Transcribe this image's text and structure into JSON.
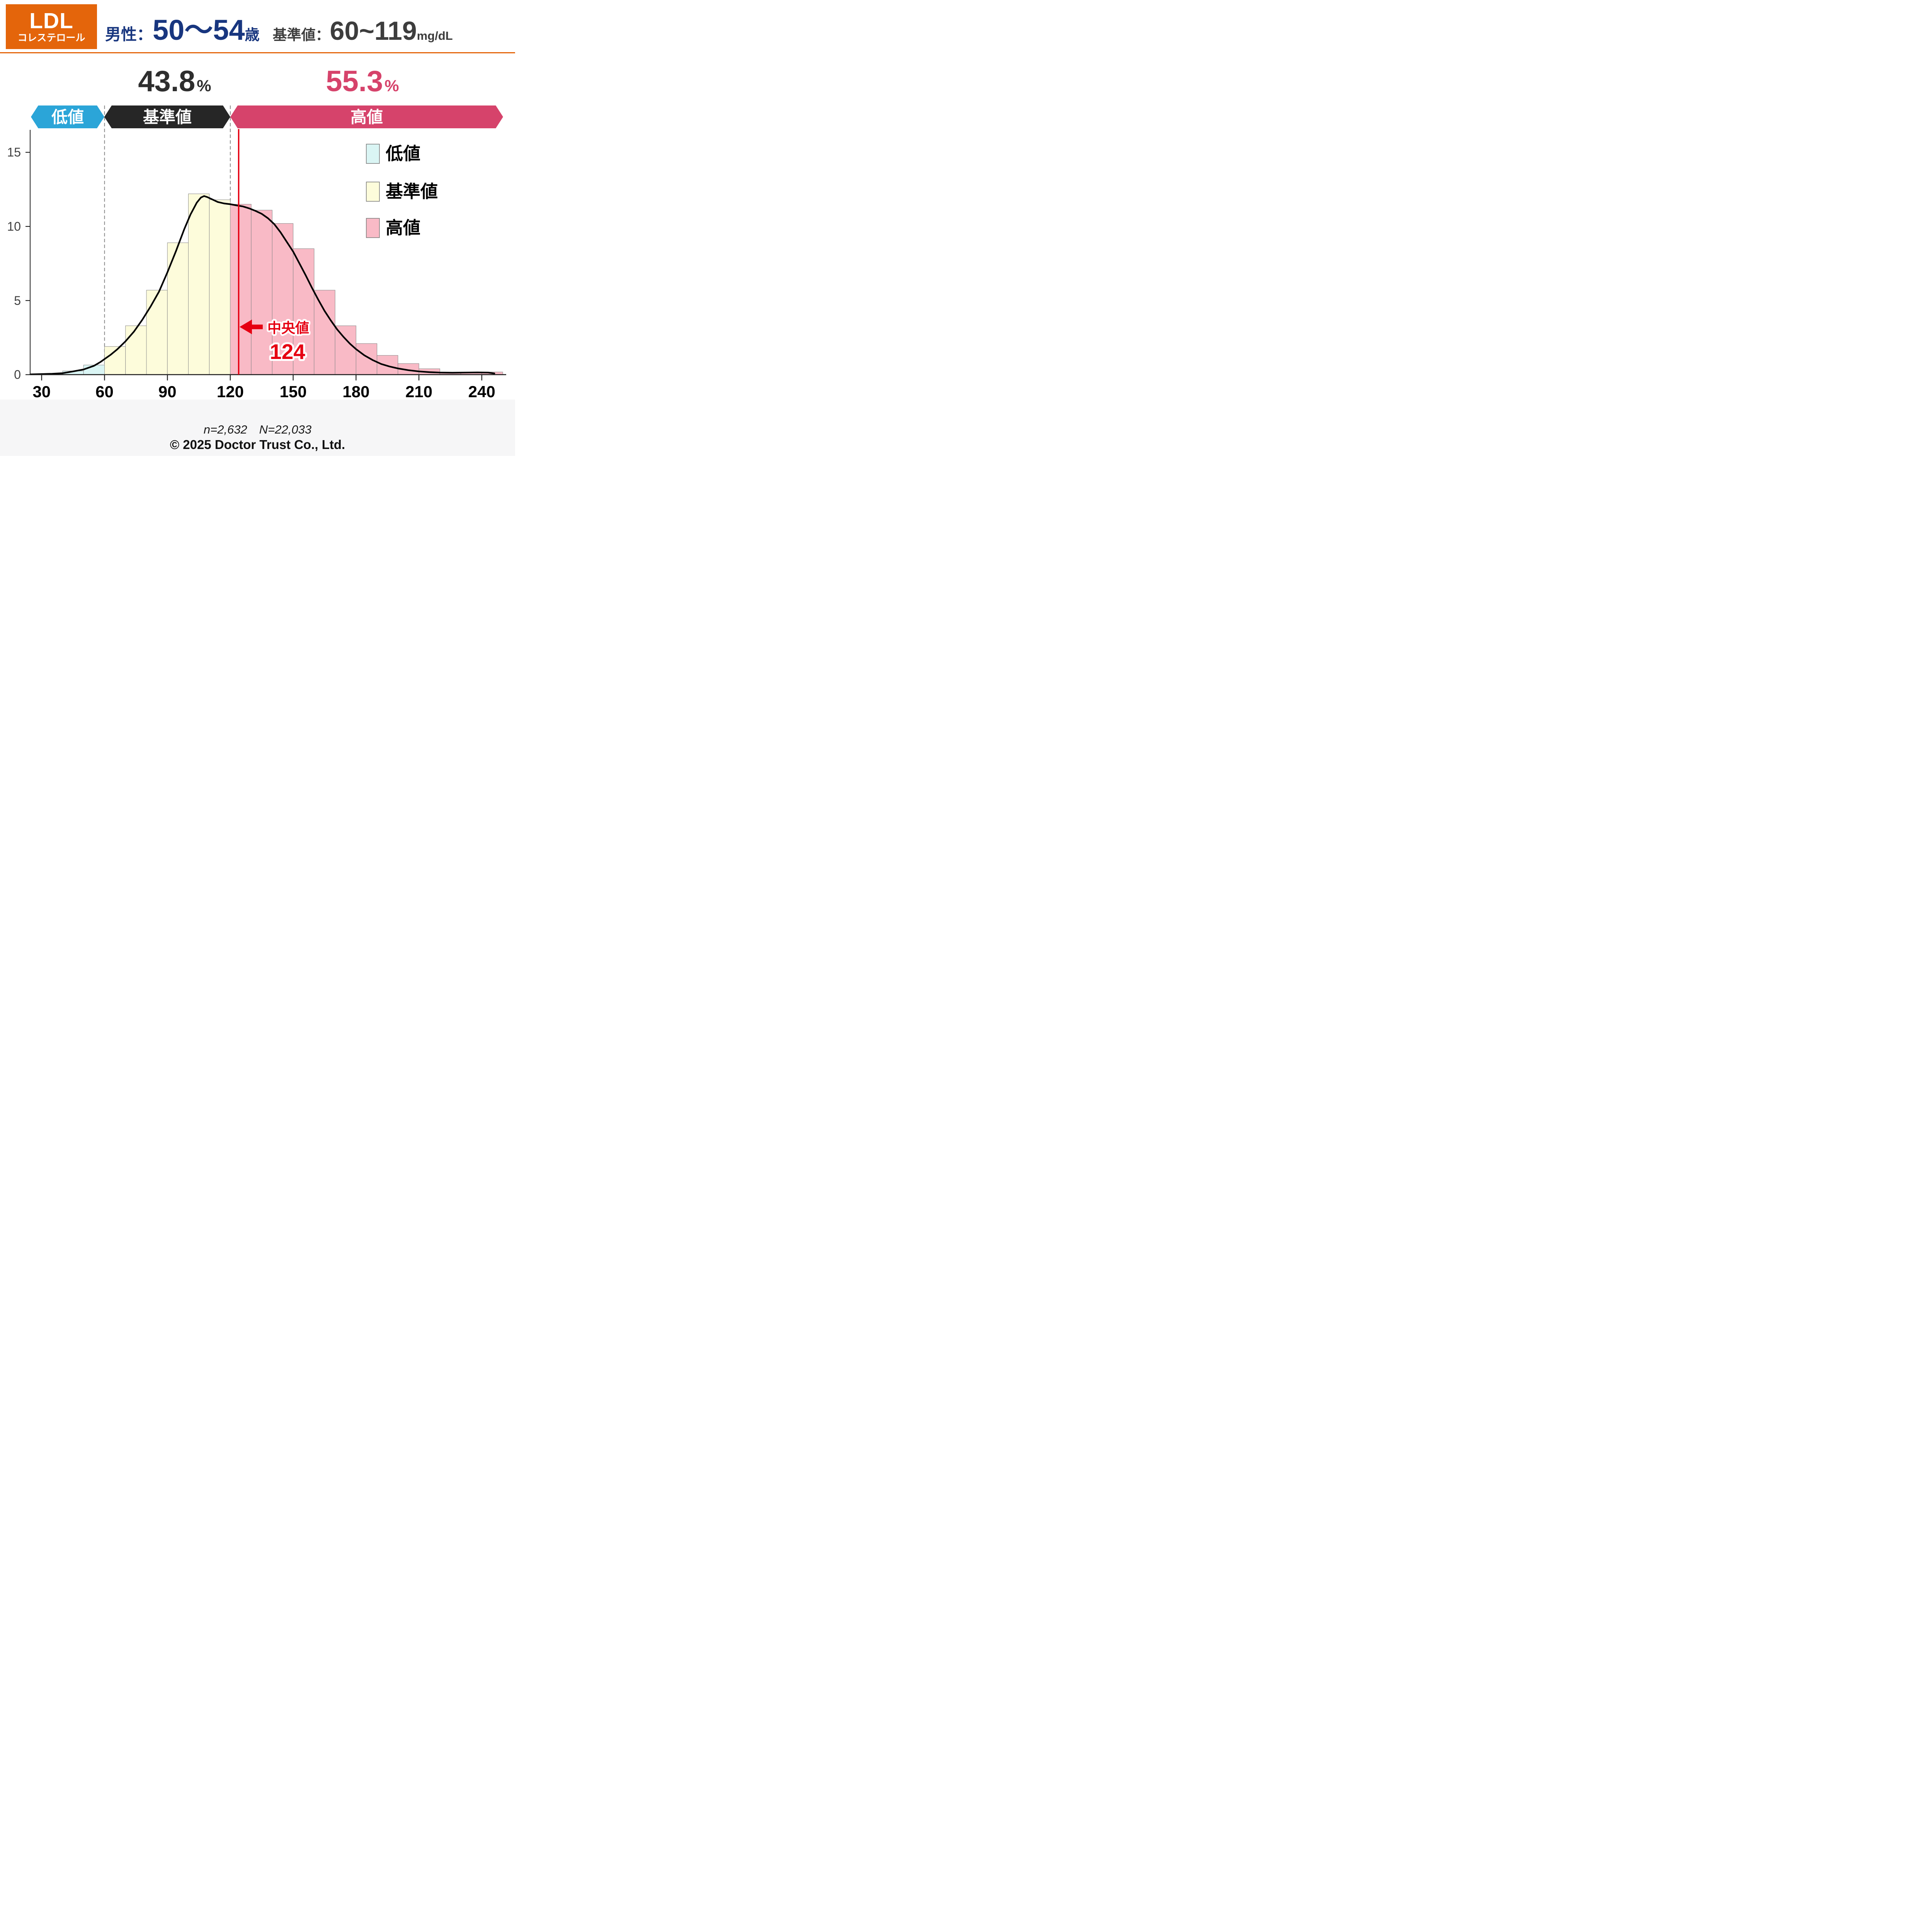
{
  "header": {
    "panel": {
      "line1": "LDL",
      "line2": "コレステロール"
    },
    "title": {
      "gender_label": "男性：",
      "age_range": "50～54",
      "age_suffix": "歳"
    },
    "reference": {
      "label": "基準値：",
      "range": "60~119",
      "unit": "mg/dL"
    }
  },
  "percents": {
    "reference": {
      "value": "43.8",
      "unit": "%"
    },
    "high": {
      "value": "55.3",
      "unit": "%"
    }
  },
  "banner": {
    "low": {
      "label": "低値",
      "color": "#2ba5d8"
    },
    "reference": {
      "label": "基準値",
      "color": "#262626"
    },
    "high": {
      "label": "高値",
      "color": "#d6436b"
    }
  },
  "legend": {
    "items": [
      {
        "label": "低値",
        "color": "#daf5f4"
      },
      {
        "label": "基準値",
        "color": "#fdfcdb"
      },
      {
        "label": "高値",
        "color": "#f9bac6"
      }
    ]
  },
  "median": {
    "label": "中央値",
    "value": "124",
    "x": 124
  },
  "footer": {
    "sample": "n=2,632　N=22,033",
    "copyright": "© 2025 Doctor Trust Co., Ltd."
  },
  "colors": {
    "accent_orange": "#e4650b",
    "navy": "#18367f",
    "red": "#e60012",
    "bar_stroke": "#888888",
    "axis": "#222222",
    "ytick_label": "#3f3f3f",
    "threshold_dash": "#7b7b7b",
    "percent_reference": "#2e2e2e",
    "percent_high": "#d6436b"
  },
  "chart_data": {
    "type": "bar",
    "subtype": "histogram_with_kde",
    "bin_start": 30,
    "bin_width": 10,
    "bin_edges": [
      30,
      40,
      50,
      60,
      70,
      80,
      90,
      100,
      110,
      120,
      130,
      140,
      150,
      160,
      170,
      180,
      190,
      200,
      210,
      220,
      230,
      240,
      250
    ],
    "values": [
      0.05,
      0.25,
      0.65,
      1.9,
      3.3,
      5.7,
      8.9,
      12.2,
      11.8,
      11.5,
      11.1,
      10.2,
      8.5,
      5.7,
      3.3,
      2.1,
      1.3,
      0.75,
      0.4,
      0.12,
      0.15,
      0.18
    ],
    "zone_thresholds": [
      60,
      120
    ],
    "zone_colors": {
      "low": "#daf5f4",
      "reference": "#fdfcdb",
      "high": "#f9bac6"
    },
    "zone_percentages": {
      "low": null,
      "reference": 43.8,
      "high": 55.3
    },
    "median": 124,
    "kde": [
      [
        24.6,
        0.02
      ],
      [
        30,
        0.04
      ],
      [
        35,
        0.06
      ],
      [
        40,
        0.1
      ],
      [
        45,
        0.22
      ],
      [
        50,
        0.35
      ],
      [
        55,
        0.6
      ],
      [
        58,
        0.85
      ],
      [
        60,
        1.05
      ],
      [
        63,
        1.35
      ],
      [
        66,
        1.7
      ],
      [
        70,
        2.25
      ],
      [
        74,
        2.9
      ],
      [
        78,
        3.7
      ],
      [
        82,
        4.6
      ],
      [
        86,
        5.6
      ],
      [
        90,
        6.9
      ],
      [
        94,
        8.3
      ],
      [
        98,
        9.8
      ],
      [
        101,
        10.8
      ],
      [
        104,
        11.6
      ],
      [
        106,
        11.95
      ],
      [
        107.5,
        12.05
      ],
      [
        109,
        11.98
      ],
      [
        111,
        11.85
      ],
      [
        114,
        11.65
      ],
      [
        117,
        11.55
      ],
      [
        120,
        11.5
      ],
      [
        123,
        11.42
      ],
      [
        126,
        11.35
      ],
      [
        129,
        11.22
      ],
      [
        132,
        11.05
      ],
      [
        135,
        10.85
      ],
      [
        138,
        10.55
      ],
      [
        141,
        10.15
      ],
      [
        144,
        9.6
      ],
      [
        147,
        8.95
      ],
      [
        150,
        8.3
      ],
      [
        153,
        7.5
      ],
      [
        156,
        6.7
      ],
      [
        159,
        5.85
      ],
      [
        162,
        5.05
      ],
      [
        165,
        4.3
      ],
      [
        168,
        3.65
      ],
      [
        171,
        3.05
      ],
      [
        174,
        2.55
      ],
      [
        177,
        2.1
      ],
      [
        180,
        1.72
      ],
      [
        184,
        1.3
      ],
      [
        188,
        0.98
      ],
      [
        192,
        0.72
      ],
      [
        196,
        0.55
      ],
      [
        200,
        0.42
      ],
      [
        205,
        0.3
      ],
      [
        210,
        0.22
      ],
      [
        215,
        0.17
      ],
      [
        220,
        0.14
      ],
      [
        226,
        0.13
      ],
      [
        232,
        0.14
      ],
      [
        238,
        0.15
      ],
      [
        243,
        0.14
      ],
      [
        246,
        0.08
      ]
    ],
    "xticks": [
      30,
      60,
      90,
      120,
      150,
      180,
      210,
      240
    ],
    "yticks": [
      0,
      5,
      10,
      15
    ],
    "xlim": [
      24.6,
      251.5
    ],
    "ylim": [
      0,
      16.5
    ],
    "xlabel": "",
    "ylabel": "",
    "grid": false,
    "legend_position": "upper-right-inside"
  }
}
